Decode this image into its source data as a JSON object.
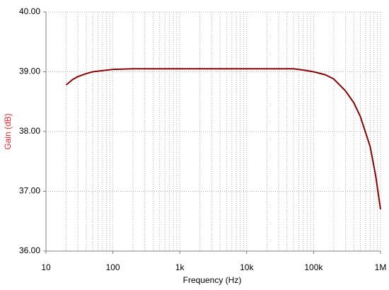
{
  "chart_data": {
    "type": "line",
    "xlabel": "Frequency (Hz)",
    "ylabel": "Gain (dB)",
    "xscale": "log",
    "grid": true,
    "xlim": [
      10,
      1000000
    ],
    "ylim": [
      36,
      40
    ],
    "xticks": [
      10,
      100,
      {
        "value": 1000,
        "label": "1k"
      },
      {
        "value": 10000,
        "label": "10k"
      },
      {
        "value": 100000,
        "label": "100k"
      },
      {
        "value": 1000000,
        "label": "1M"
      }
    ],
    "yticks": [
      {
        "value": 36,
        "label": "36.00"
      },
      {
        "value": 37,
        "label": "37.00"
      },
      {
        "value": 38,
        "label": "38.00"
      },
      {
        "value": 39,
        "label": "39.00"
      },
      {
        "value": 40,
        "label": "40.00"
      }
    ],
    "ylabel_color": "#e8262b",
    "x": [
      20,
      25,
      30,
      40,
      50,
      70,
      100,
      200,
      1000,
      10000,
      50000,
      70000,
      100000,
      150000,
      200000,
      300000,
      400000,
      500000,
      700000,
      850000,
      1000000
    ],
    "series": [
      {
        "color": "#8b0000",
        "values": [
          38.78,
          38.87,
          38.92,
          38.97,
          39.0,
          39.02,
          39.04,
          39.05,
          39.05,
          39.05,
          39.05,
          39.03,
          39.0,
          38.95,
          38.88,
          38.68,
          38.48,
          38.25,
          37.75,
          37.25,
          36.7
        ]
      }
    ]
  }
}
